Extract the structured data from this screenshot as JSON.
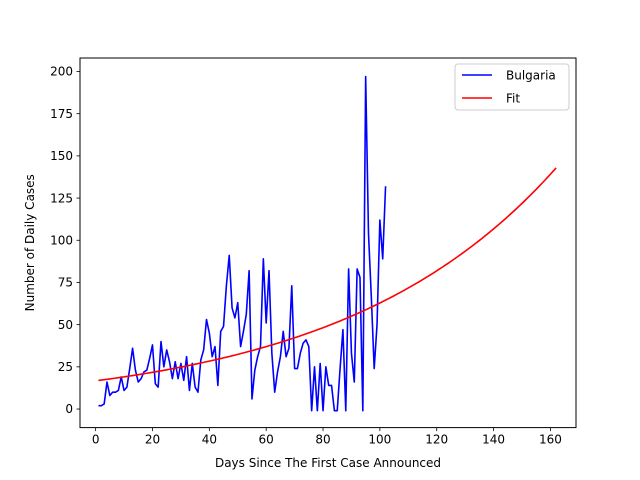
{
  "chart_data": {
    "type": "line",
    "title": "",
    "xlabel": "Days Since The First Case Announced",
    "ylabel": "Number of Daily Cases",
    "xlim": [
      -5.5,
      169
    ],
    "ylim": [
      -11,
      208
    ],
    "x_ticks": [
      0,
      20,
      40,
      60,
      80,
      100,
      120,
      140,
      160
    ],
    "y_ticks": [
      0,
      25,
      50,
      75,
      100,
      125,
      150,
      175,
      200
    ],
    "grid": false,
    "legend_position": "upper right",
    "series": [
      {
        "name": "Bulgaria",
        "color": "#0000ff",
        "x": [
          1,
          2,
          3,
          4,
          5,
          6,
          7,
          8,
          9,
          10,
          11,
          12,
          13,
          14,
          15,
          16,
          17,
          18,
          19,
          20,
          21,
          22,
          23,
          24,
          25,
          26,
          27,
          28,
          29,
          30,
          31,
          32,
          33,
          34,
          35,
          36,
          37,
          38,
          39,
          40,
          41,
          42,
          43,
          44,
          45,
          46,
          47,
          48,
          49,
          50,
          51,
          52,
          53,
          54,
          55,
          56,
          57,
          58,
          59,
          60,
          61,
          62,
          63,
          64,
          65,
          66,
          67,
          68,
          69,
          70,
          71,
          72,
          73,
          74,
          75,
          76,
          77,
          78,
          79,
          80,
          81,
          82,
          83,
          84,
          85,
          86,
          87,
          88,
          89,
          90,
          91,
          92,
          93,
          94,
          95,
          96,
          97,
          98,
          99,
          100,
          101,
          102
        ],
        "y": [
          2,
          2,
          3,
          16,
          8,
          10,
          10,
          11,
          19,
          11,
          13,
          24,
          36,
          23,
          16,
          18,
          22,
          23,
          30,
          38,
          15,
          13,
          40,
          25,
          35,
          28,
          18,
          28,
          18,
          27,
          17,
          31,
          11,
          27,
          13,
          10,
          29,
          35,
          53,
          45,
          31,
          37,
          14,
          46,
          49,
          73,
          91,
          60,
          54,
          63,
          37,
          46,
          56,
          82,
          6,
          23,
          31,
          37,
          89,
          51,
          82,
          33,
          10,
          22,
          31,
          46,
          31,
          36,
          73,
          24,
          24,
          33,
          39,
          41,
          37,
          -1,
          25,
          -1,
          27,
          -1,
          25,
          14,
          14,
          -1,
          -1,
          24,
          47,
          -1,
          83,
          33,
          16,
          83,
          78,
          -1,
          197,
          104,
          66,
          24,
          50,
          112,
          89,
          132
        ]
      },
      {
        "name": "Fit",
        "color": "#ff0000",
        "type": "exponential",
        "x_range": [
          1,
          162
        ],
        "a": 16.7,
        "b": 0.01325
      }
    ]
  }
}
